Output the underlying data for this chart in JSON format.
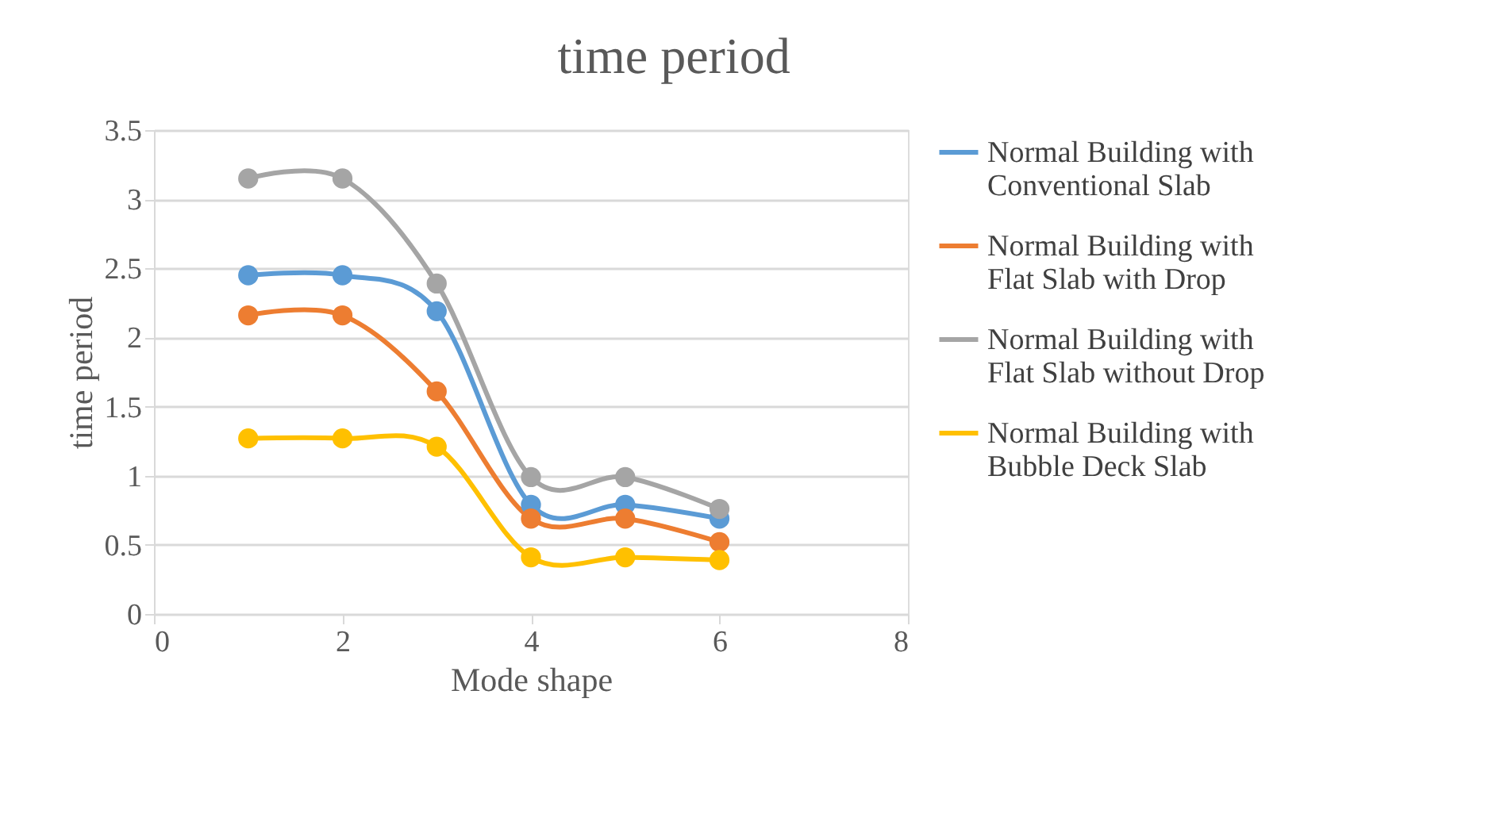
{
  "chart_data": {
    "type": "line",
    "title": "time period",
    "xlabel": "Mode shape",
    "ylabel": "time period",
    "x": [
      1,
      2,
      3,
      4,
      5,
      6
    ],
    "series": [
      {
        "name": "Normal Building with Conventional Slab",
        "color": "#5b9bd5",
        "values": [
          2.45,
          2.45,
          2.19,
          0.79,
          0.79,
          0.69
        ]
      },
      {
        "name": "Normal Building with Flat Slab with Drop",
        "color": "#ed7d31",
        "values": [
          2.16,
          2.16,
          1.61,
          0.69,
          0.69,
          0.52
        ]
      },
      {
        "name": "Normal Building with Flat Slab without Drop",
        "color": "#a5a5a5",
        "values": [
          3.15,
          3.15,
          2.39,
          0.99,
          0.99,
          0.76
        ]
      },
      {
        "name": "Normal Building with Bubble Deck Slab",
        "color": "#ffc000",
        "values": [
          1.27,
          1.27,
          1.21,
          0.41,
          0.41,
          0.39
        ]
      }
    ],
    "xlim": [
      0,
      8
    ],
    "xticks": [
      0,
      2,
      4,
      6,
      8
    ],
    "ylim": [
      0,
      3.5
    ],
    "yticks": [
      0,
      0.5,
      1,
      1.5,
      2,
      2.5,
      3,
      3.5
    ],
    "grid": "y",
    "legend": "right",
    "marker": "circle",
    "line_style": "solid"
  }
}
